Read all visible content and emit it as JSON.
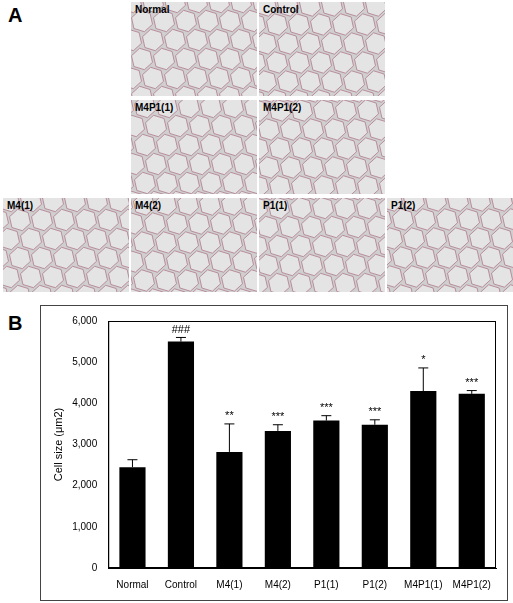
{
  "panel_labels": [
    "A",
    "B"
  ],
  "micrographs": [
    "Normal",
    "Control",
    "M4P1(1)",
    "M4P1(2)",
    "M4(1)",
    "M4(2)",
    "P1(1)",
    "P1(2)"
  ],
  "chart_data": {
    "type": "bar",
    "y_label": "Cell size (μm2)",
    "categories": [
      "Normal",
      "Control",
      "M4(1)",
      "M4(2)",
      "P1(1)",
      "P1(2)",
      "M4P1(1)",
      "M4P1(2)"
    ],
    "values": [
      2450,
      5500,
      2820,
      3330,
      3580,
      3480,
      4300,
      4230
    ],
    "error": [
      180,
      100,
      680,
      150,
      120,
      120,
      560,
      80
    ],
    "significance": [
      null,
      "###",
      "**",
      "***",
      "***",
      "***",
      "*",
      "***"
    ],
    "color": "#000000",
    "ylim": [
      0,
      6000
    ],
    "yticks": [
      0,
      1000,
      2000,
      3000,
      4000,
      5000,
      6000
    ],
    "grid": false
  }
}
